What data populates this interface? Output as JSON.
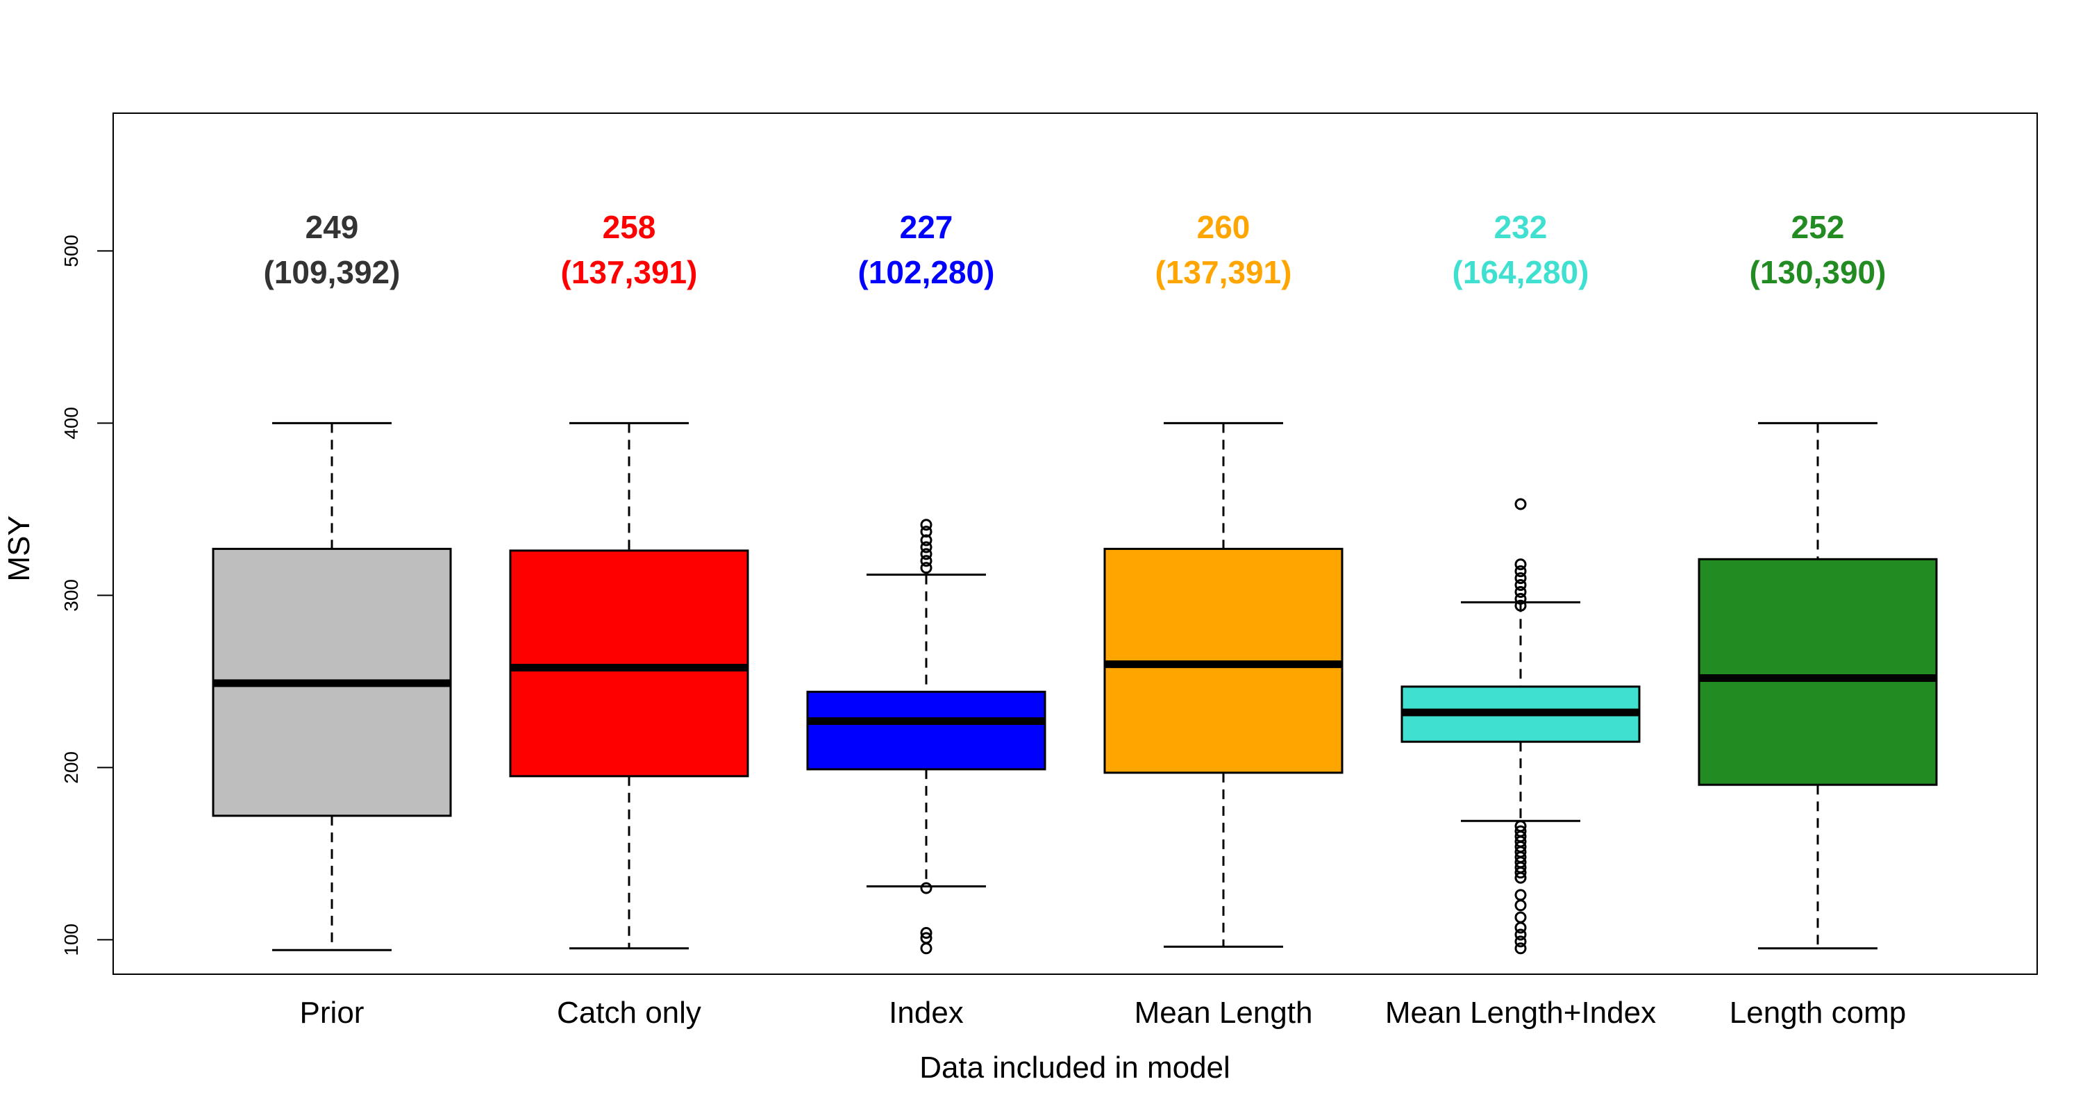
{
  "chart_data": {
    "type": "boxplot",
    "xlabel": "Data included in model",
    "ylabel": "MSY",
    "ylim": [
      80,
      580
    ],
    "yticks": [
      100,
      200,
      300,
      400,
      500
    ],
    "categories": [
      "Prior",
      "Catch only",
      "Index",
      "Mean Length",
      "Mean Length+Index",
      "Length comp"
    ],
    "boxes": [
      {
        "name": "Prior",
        "color": "#BEBEBE",
        "label_color": "#333333",
        "median": 249,
        "q1": 172,
        "q3": 327,
        "whisker_low": 94,
        "whisker_high": 400,
        "outliers": [],
        "annot_value": "249",
        "annot_range": "(109,392)"
      },
      {
        "name": "Catch only",
        "color": "#FF0000",
        "label_color": "#FF0000",
        "median": 258,
        "q1": 195,
        "q3": 326,
        "whisker_low": 95,
        "whisker_high": 400,
        "outliers": [],
        "annot_value": "258",
        "annot_range": "(137,391)"
      },
      {
        "name": "Index",
        "color": "#0000FF",
        "label_color": "#0000FF",
        "median": 227,
        "q1": 199,
        "q3": 244,
        "whisker_low": 131,
        "whisker_high": 312,
        "outliers": [
          95,
          101,
          104,
          130,
          316,
          320,
          324,
          328,
          332,
          337,
          341
        ],
        "annot_value": "227",
        "annot_range": "(102,280)"
      },
      {
        "name": "Mean Length",
        "color": "#FFA500",
        "label_color": "#FFA500",
        "median": 260,
        "q1": 197,
        "q3": 327,
        "whisker_low": 96,
        "whisker_high": 400,
        "outliers": [],
        "annot_value": "260",
        "annot_range": "(137,391)"
      },
      {
        "name": "Mean Length+Index",
        "color": "#40E0D0",
        "label_color": "#40E0D0",
        "median": 232,
        "q1": 215,
        "q3": 247,
        "whisker_low": 169,
        "whisker_high": 296,
        "outliers": [
          95,
          99,
          103,
          107,
          113,
          120,
          126,
          136,
          139,
          142,
          145,
          148,
          151,
          154,
          157,
          160,
          163,
          166,
          294,
          298,
          302,
          306,
          310,
          314,
          318,
          353
        ],
        "annot_value": "232",
        "annot_range": "(164,280)"
      },
      {
        "name": "Length comp",
        "color": "#228B22",
        "label_color": "#228B22",
        "median": 252,
        "q1": 190,
        "q3": 321,
        "whisker_low": 95,
        "whisker_high": 400,
        "outliers": [],
        "annot_value": "252",
        "annot_range": "(130,390)"
      }
    ]
  }
}
